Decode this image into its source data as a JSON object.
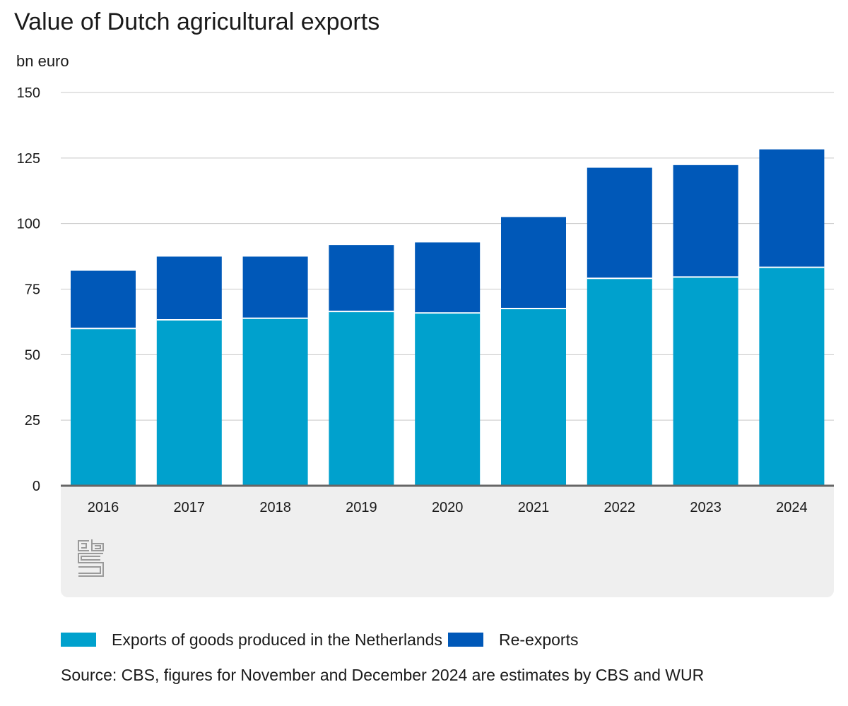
{
  "chart_data": {
    "type": "bar",
    "stacked": true,
    "title": "Value of Dutch agricultural exports",
    "ylabel": "bn euro",
    "xlabel": "",
    "ylim": [
      0,
      150
    ],
    "yticks": [
      "0",
      "25",
      "50",
      "75",
      "100",
      "125",
      "150"
    ],
    "grid": true,
    "legend_position": "bottom",
    "categories": [
      "2016",
      "2017",
      "2018",
      "2019",
      "2020",
      "2021",
      "2022",
      "2023",
      "2024"
    ],
    "series": [
      {
        "name": "Exports of goods produced in the Netherlands",
        "color": "#00a1cd",
        "values": [
          60.0,
          63.3,
          63.9,
          66.5,
          65.9,
          67.6,
          79.1,
          79.6,
          83.3
        ]
      },
      {
        "name": "Re-exports",
        "color": "#0058b8",
        "values": [
          22.0,
          24.1,
          23.5,
          25.3,
          26.9,
          34.9,
          42.2,
          42.7,
          45.0
        ]
      }
    ],
    "source": "Source: CBS, figures for November and December 2024 are estimates by CBS and WUR"
  },
  "logo": {
    "name": "cbs-logo-icon",
    "text": "cbs"
  }
}
